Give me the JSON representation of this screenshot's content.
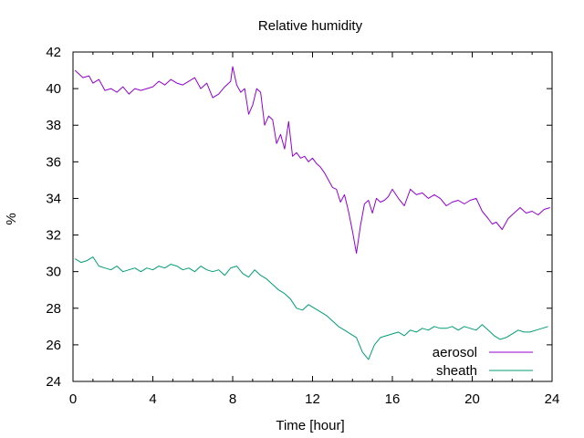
{
  "chart_data": {
    "type": "line",
    "title": "Relative humidity",
    "xlabel": "Time [hour]",
    "ylabel": "%",
    "xlim": [
      0,
      24
    ],
    "ylim": [
      24,
      42
    ],
    "xticks": [
      0,
      4,
      8,
      12,
      16,
      20,
      24
    ],
    "yticks": [
      24,
      26,
      28,
      30,
      32,
      34,
      36,
      38,
      40,
      42
    ],
    "grid": false,
    "legend_position": "bottom-right",
    "series": [
      {
        "name": "aerosol",
        "color": "#9400d3",
        "x": [
          0.1,
          0.3,
          0.5,
          0.8,
          1.0,
          1.3,
          1.6,
          1.9,
          2.2,
          2.5,
          2.8,
          3.1,
          3.4,
          3.7,
          4.0,
          4.3,
          4.6,
          4.9,
          5.2,
          5.5,
          5.8,
          6.1,
          6.4,
          6.7,
          7.0,
          7.3,
          7.6,
          7.9,
          8.0,
          8.2,
          8.4,
          8.6,
          8.8,
          9.0,
          9.2,
          9.4,
          9.6,
          9.8,
          10.0,
          10.2,
          10.4,
          10.6,
          10.8,
          11.0,
          11.2,
          11.4,
          11.6,
          11.8,
          12.0,
          12.2,
          12.4,
          12.6,
          12.8,
          13.0,
          13.2,
          13.4,
          13.6,
          13.8,
          14.0,
          14.2,
          14.4,
          14.6,
          14.8,
          15.0,
          15.2,
          15.4,
          15.6,
          15.8,
          16.0,
          16.3,
          16.6,
          16.9,
          17.2,
          17.5,
          17.8,
          18.1,
          18.4,
          18.7,
          19.0,
          19.3,
          19.6,
          19.9,
          20.2,
          20.5,
          20.8,
          21.0,
          21.2,
          21.5,
          21.8,
          22.1,
          22.4,
          22.7,
          23.0,
          23.3,
          23.6,
          23.9
        ],
        "y": [
          41.0,
          40.8,
          40.6,
          40.7,
          40.3,
          40.5,
          39.9,
          40.0,
          39.8,
          40.1,
          39.7,
          40.0,
          39.9,
          40.0,
          40.1,
          40.4,
          40.2,
          40.5,
          40.3,
          40.2,
          40.4,
          40.6,
          40.0,
          40.3,
          39.5,
          39.7,
          40.1,
          40.4,
          41.2,
          40.2,
          39.8,
          40.0,
          38.6,
          39.1,
          40.0,
          39.8,
          38.0,
          38.5,
          38.3,
          37.0,
          37.5,
          36.7,
          38.2,
          36.3,
          36.5,
          36.2,
          36.3,
          36.0,
          36.2,
          35.9,
          35.7,
          35.4,
          35.0,
          34.6,
          34.5,
          33.8,
          34.2,
          33.3,
          32.2,
          31.0,
          32.5,
          33.7,
          33.9,
          33.2,
          34.0,
          33.8,
          33.9,
          34.1,
          34.5,
          34.0,
          33.6,
          34.5,
          34.2,
          34.3,
          34.0,
          34.2,
          34.0,
          33.6,
          33.8,
          33.9,
          33.7,
          33.9,
          34.0,
          33.3,
          32.9,
          32.6,
          32.7,
          32.3,
          32.9,
          33.2,
          33.5,
          33.2,
          33.3,
          33.1,
          33.4,
          33.5
        ]
      },
      {
        "name": "sheath",
        "color": "#009e73",
        "x": [
          0.1,
          0.4,
          0.7,
          1.0,
          1.3,
          1.6,
          1.9,
          2.2,
          2.5,
          2.8,
          3.1,
          3.4,
          3.7,
          4.0,
          4.3,
          4.6,
          4.9,
          5.2,
          5.5,
          5.8,
          6.1,
          6.4,
          6.7,
          7.0,
          7.3,
          7.6,
          7.9,
          8.2,
          8.5,
          8.8,
          9.1,
          9.4,
          9.7,
          10.0,
          10.3,
          10.6,
          10.9,
          11.2,
          11.5,
          11.8,
          12.1,
          12.4,
          12.7,
          13.0,
          13.3,
          13.6,
          13.9,
          14.2,
          14.5,
          14.8,
          15.1,
          15.4,
          15.7,
          16.0,
          16.3,
          16.6,
          16.9,
          17.2,
          17.5,
          17.8,
          18.1,
          18.4,
          18.7,
          19.0,
          19.3,
          19.6,
          19.9,
          20.2,
          20.5,
          20.8,
          21.1,
          21.4,
          21.7,
          22.0,
          22.3,
          22.6,
          22.9,
          23.2,
          23.5,
          23.8
        ],
        "y": [
          30.7,
          30.5,
          30.6,
          30.8,
          30.3,
          30.2,
          30.1,
          30.3,
          30.0,
          30.1,
          30.2,
          30.0,
          30.2,
          30.1,
          30.3,
          30.2,
          30.4,
          30.3,
          30.1,
          30.2,
          30.0,
          30.3,
          30.1,
          30.0,
          30.1,
          29.8,
          30.2,
          30.3,
          29.9,
          29.7,
          30.1,
          29.8,
          29.6,
          29.3,
          29.0,
          28.8,
          28.5,
          28.0,
          27.9,
          28.2,
          28.0,
          27.8,
          27.6,
          27.3,
          27.0,
          26.8,
          26.6,
          26.4,
          25.6,
          25.2,
          26.0,
          26.4,
          26.5,
          26.6,
          26.7,
          26.5,
          26.8,
          26.7,
          26.9,
          26.8,
          27.0,
          26.9,
          26.9,
          27.0,
          26.8,
          27.0,
          26.9,
          26.8,
          27.1,
          26.8,
          26.5,
          26.3,
          26.4,
          26.6,
          26.8,
          26.7,
          26.7,
          26.8,
          26.9,
          27.0
        ]
      }
    ]
  }
}
